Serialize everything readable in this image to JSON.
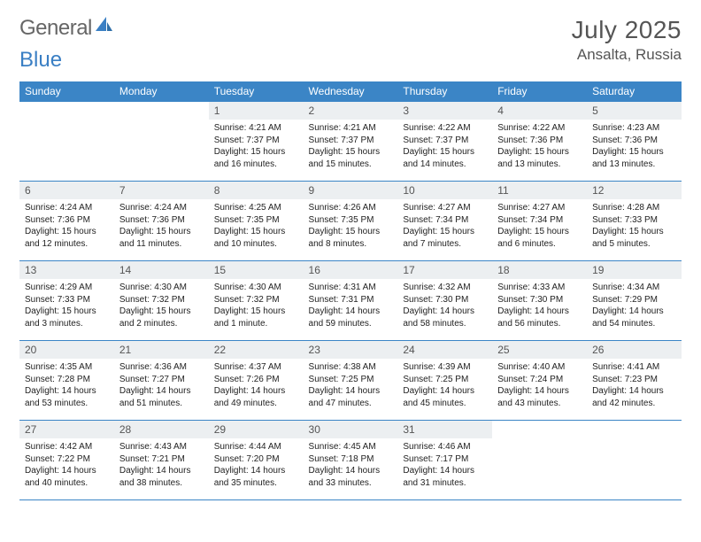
{
  "brand": {
    "part1": "General",
    "part2": "Blue"
  },
  "title": "July 2025",
  "location": "Ansalta, Russia",
  "colors": {
    "accent": "#3b85c6",
    "daynum_bg": "#eceff1",
    "text": "#222222",
    "muted": "#555555",
    "background": "#ffffff"
  },
  "weekdays": [
    "Sunday",
    "Monday",
    "Tuesday",
    "Wednesday",
    "Thursday",
    "Friday",
    "Saturday"
  ],
  "weeks": [
    [
      null,
      null,
      {
        "n": "1",
        "sr": "4:21 AM",
        "ss": "7:37 PM",
        "dl": "15 hours and 16 minutes."
      },
      {
        "n": "2",
        "sr": "4:21 AM",
        "ss": "7:37 PM",
        "dl": "15 hours and 15 minutes."
      },
      {
        "n": "3",
        "sr": "4:22 AM",
        "ss": "7:37 PM",
        "dl": "15 hours and 14 minutes."
      },
      {
        "n": "4",
        "sr": "4:22 AM",
        "ss": "7:36 PM",
        "dl": "15 hours and 13 minutes."
      },
      {
        "n": "5",
        "sr": "4:23 AM",
        "ss": "7:36 PM",
        "dl": "15 hours and 13 minutes."
      }
    ],
    [
      {
        "n": "6",
        "sr": "4:24 AM",
        "ss": "7:36 PM",
        "dl": "15 hours and 12 minutes."
      },
      {
        "n": "7",
        "sr": "4:24 AM",
        "ss": "7:36 PM",
        "dl": "15 hours and 11 minutes."
      },
      {
        "n": "8",
        "sr": "4:25 AM",
        "ss": "7:35 PM",
        "dl": "15 hours and 10 minutes."
      },
      {
        "n": "9",
        "sr": "4:26 AM",
        "ss": "7:35 PM",
        "dl": "15 hours and 8 minutes."
      },
      {
        "n": "10",
        "sr": "4:27 AM",
        "ss": "7:34 PM",
        "dl": "15 hours and 7 minutes."
      },
      {
        "n": "11",
        "sr": "4:27 AM",
        "ss": "7:34 PM",
        "dl": "15 hours and 6 minutes."
      },
      {
        "n": "12",
        "sr": "4:28 AM",
        "ss": "7:33 PM",
        "dl": "15 hours and 5 minutes."
      }
    ],
    [
      {
        "n": "13",
        "sr": "4:29 AM",
        "ss": "7:33 PM",
        "dl": "15 hours and 3 minutes."
      },
      {
        "n": "14",
        "sr": "4:30 AM",
        "ss": "7:32 PM",
        "dl": "15 hours and 2 minutes."
      },
      {
        "n": "15",
        "sr": "4:30 AM",
        "ss": "7:32 PM",
        "dl": "15 hours and 1 minute."
      },
      {
        "n": "16",
        "sr": "4:31 AM",
        "ss": "7:31 PM",
        "dl": "14 hours and 59 minutes."
      },
      {
        "n": "17",
        "sr": "4:32 AM",
        "ss": "7:30 PM",
        "dl": "14 hours and 58 minutes."
      },
      {
        "n": "18",
        "sr": "4:33 AM",
        "ss": "7:30 PM",
        "dl": "14 hours and 56 minutes."
      },
      {
        "n": "19",
        "sr": "4:34 AM",
        "ss": "7:29 PM",
        "dl": "14 hours and 54 minutes."
      }
    ],
    [
      {
        "n": "20",
        "sr": "4:35 AM",
        "ss": "7:28 PM",
        "dl": "14 hours and 53 minutes."
      },
      {
        "n": "21",
        "sr": "4:36 AM",
        "ss": "7:27 PM",
        "dl": "14 hours and 51 minutes."
      },
      {
        "n": "22",
        "sr": "4:37 AM",
        "ss": "7:26 PM",
        "dl": "14 hours and 49 minutes."
      },
      {
        "n": "23",
        "sr": "4:38 AM",
        "ss": "7:25 PM",
        "dl": "14 hours and 47 minutes."
      },
      {
        "n": "24",
        "sr": "4:39 AM",
        "ss": "7:25 PM",
        "dl": "14 hours and 45 minutes."
      },
      {
        "n": "25",
        "sr": "4:40 AM",
        "ss": "7:24 PM",
        "dl": "14 hours and 43 minutes."
      },
      {
        "n": "26",
        "sr": "4:41 AM",
        "ss": "7:23 PM",
        "dl": "14 hours and 42 minutes."
      }
    ],
    [
      {
        "n": "27",
        "sr": "4:42 AM",
        "ss": "7:22 PM",
        "dl": "14 hours and 40 minutes."
      },
      {
        "n": "28",
        "sr": "4:43 AM",
        "ss": "7:21 PM",
        "dl": "14 hours and 38 minutes."
      },
      {
        "n": "29",
        "sr": "4:44 AM",
        "ss": "7:20 PM",
        "dl": "14 hours and 35 minutes."
      },
      {
        "n": "30",
        "sr": "4:45 AM",
        "ss": "7:18 PM",
        "dl": "14 hours and 33 minutes."
      },
      {
        "n": "31",
        "sr": "4:46 AM",
        "ss": "7:17 PM",
        "dl": "14 hours and 31 minutes."
      },
      null,
      null
    ]
  ],
  "labels": {
    "sunrise": "Sunrise:",
    "sunset": "Sunset:",
    "daylight": "Daylight:"
  }
}
